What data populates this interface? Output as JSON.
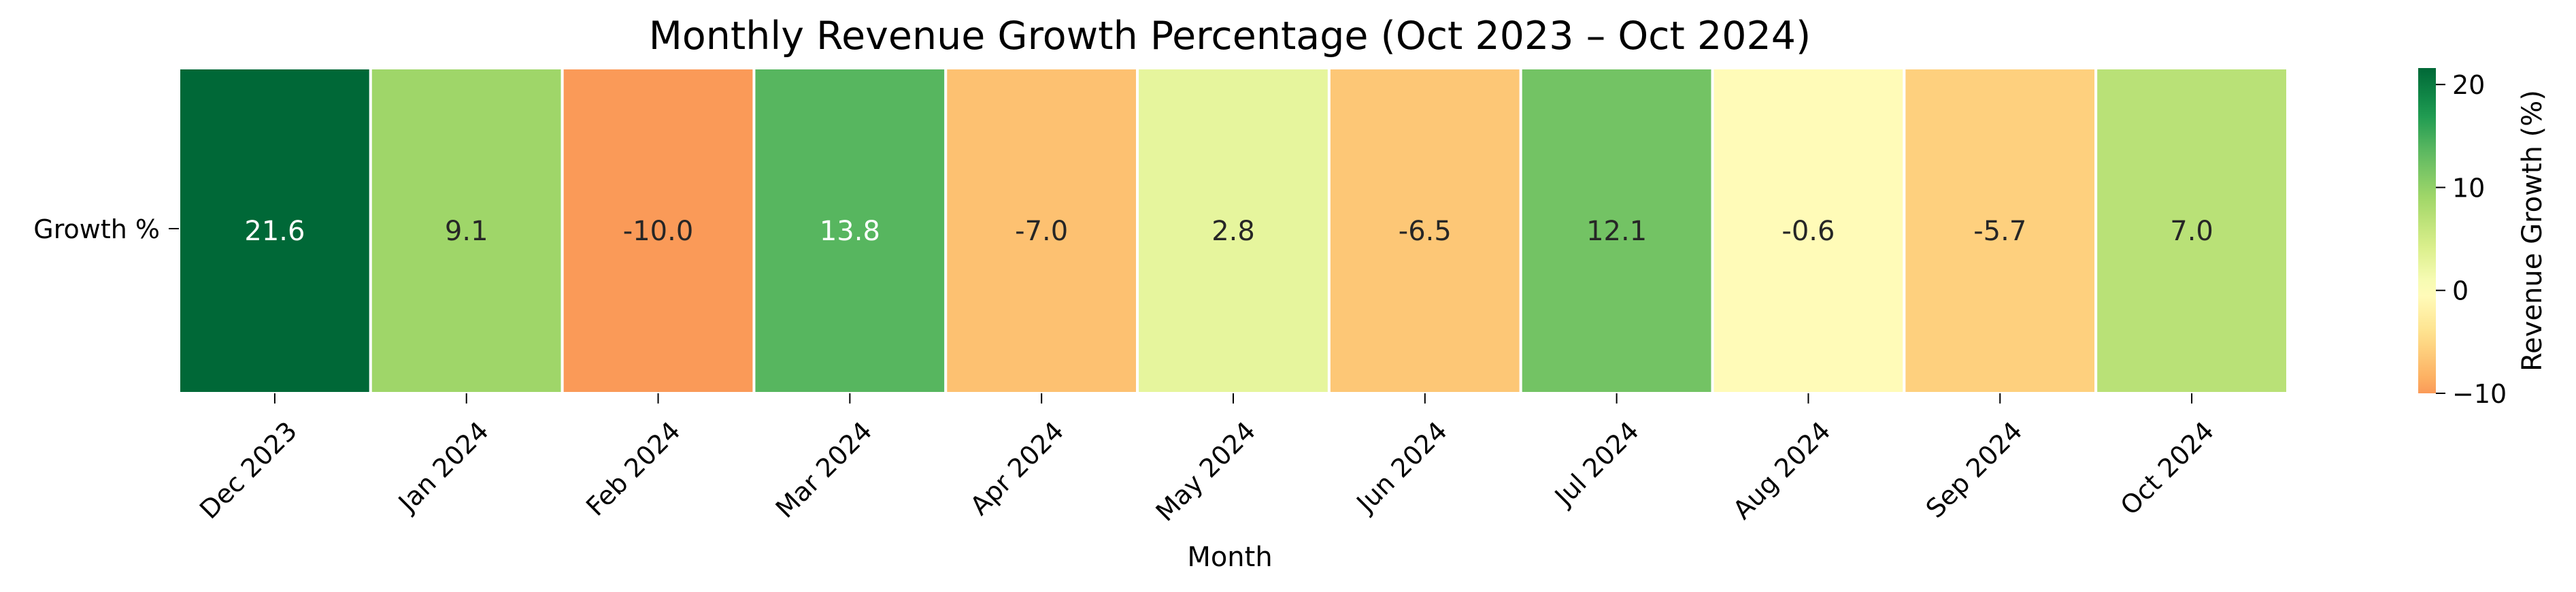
{
  "chart_data": {
    "type": "heatmap",
    "title": "Monthly Revenue Growth Percentage (Oct 2023 – Oct 2024)",
    "xlabel": "Month",
    "ylabel": "",
    "row_labels": [
      "Growth %"
    ],
    "categories": [
      "Dec 2023",
      "Jan 2024",
      "Feb 2024",
      "Mar 2024",
      "Apr 2024",
      "May 2024",
      "Jun 2024",
      "Jul 2024",
      "Aug 2024",
      "Sep 2024",
      "Oct 2024"
    ],
    "values": [
      21.6,
      9.1,
      -10.0,
      13.8,
      -7.0,
      2.8,
      -6.5,
      12.1,
      -0.6,
      -5.7,
      7.0
    ],
    "value_labels": [
      "21.6",
      "9.1",
      "-10.0",
      "13.8",
      "-7.0",
      "2.8",
      "-6.5",
      "12.1",
      "-0.6",
      "-5.7",
      "7.0"
    ],
    "colormap": "RdYlGn",
    "color_range": [
      -21.6,
      21.6
    ],
    "colorbar": {
      "label": "Revenue Growth (%)",
      "range": [
        -10.0,
        21.6
      ],
      "ticks": [
        -10,
        0,
        10,
        20
      ],
      "tick_labels": [
        "−10",
        "0",
        "10",
        "20"
      ]
    },
    "cell_border_color": "#ffffff",
    "colorbar_position": "right"
  }
}
